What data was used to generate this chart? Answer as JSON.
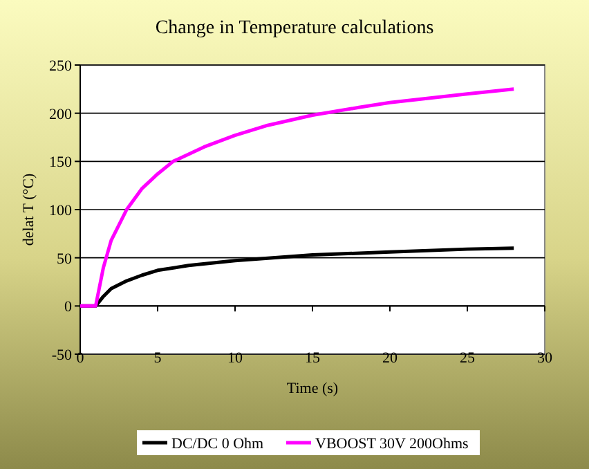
{
  "chart_data": {
    "type": "line",
    "title": "Change in Temperature calculations",
    "xlabel": "Time (s)",
    "ylabel": "delat T (°C)",
    "xlim": [
      0,
      30
    ],
    "xticks": [
      0,
      5,
      10,
      15,
      20,
      25,
      30
    ],
    "ylim": [
      -50,
      250
    ],
    "yticks": [
      -50,
      0,
      50,
      100,
      150,
      200,
      250
    ],
    "grid": "y",
    "legend": "bottom",
    "marker": "none",
    "line_style": "solid",
    "series": [
      {
        "name": "DC/DC 0 Ohm",
        "color": "#000000",
        "x": [
          0,
          1,
          1.5,
          2,
          3,
          4,
          5,
          7,
          10,
          15,
          20,
          25,
          28
        ],
        "values": [
          0,
          0,
          10,
          18,
          26,
          32,
          37,
          42,
          47,
          53,
          56,
          59,
          60
        ]
      },
      {
        "name": "VBOOST 30V 200Ohms",
        "color": "#ff00ff",
        "x": [
          0,
          1,
          1.5,
          2,
          3,
          4,
          5,
          6,
          8,
          10,
          12,
          15,
          18,
          20,
          25,
          28
        ],
        "values": [
          0,
          0,
          40,
          68,
          100,
          122,
          137,
          150,
          165,
          177,
          187,
          198,
          206,
          211,
          220,
          225
        ]
      }
    ]
  }
}
